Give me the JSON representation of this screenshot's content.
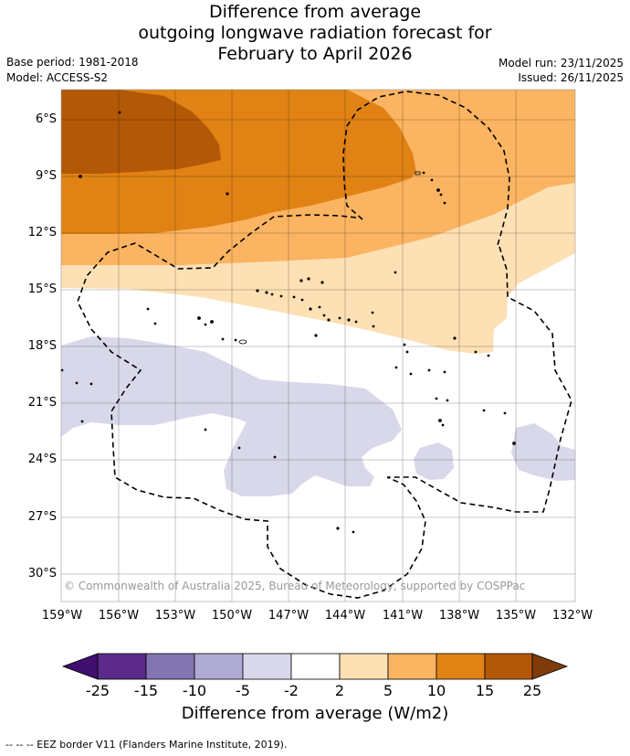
{
  "title": {
    "line1": "Difference from average",
    "line2": "outgoing longwave radiation forecast for",
    "line3": "February to April 2026"
  },
  "meta": {
    "base_period": "Base period: 1981-2018",
    "model": "Model: ACCESS-S2",
    "model_run": "Model run: 23/11/2025",
    "issued": "Issued: 26/11/2025"
  },
  "map": {
    "lat_labels": [
      "6°S",
      "9°S",
      "12°S",
      "15°S",
      "18°S",
      "21°S",
      "24°S",
      "27°S",
      "30°S"
    ],
    "lon_labels": [
      "159°W",
      "156°W",
      "153°W",
      "150°W",
      "147°W",
      "144°W",
      "141°W",
      "138°W",
      "135°W",
      "132°W"
    ],
    "copyright": "© Commonwealth of Australia 2025, Bureau of Meteorology, supported by COSPPac"
  },
  "colorbar": {
    "ticks": [
      "-25",
      "-15",
      "-10",
      "-5",
      "-2",
      "2",
      "5",
      "10",
      "15",
      "25"
    ],
    "colors": [
      "#3f0f6e",
      "#5b2a8a",
      "#8275b0",
      "#b0abd4",
      "#d8d8ea",
      "#ffffff",
      "#fde0b4",
      "#fbb461",
      "#e08214",
      "#b35806",
      "#7f3b08"
    ],
    "title": "Difference from average (W/m2)"
  },
  "footer": "--  --  -- EEZ border V11 (Flanders Marine Institute, 2019)."
}
